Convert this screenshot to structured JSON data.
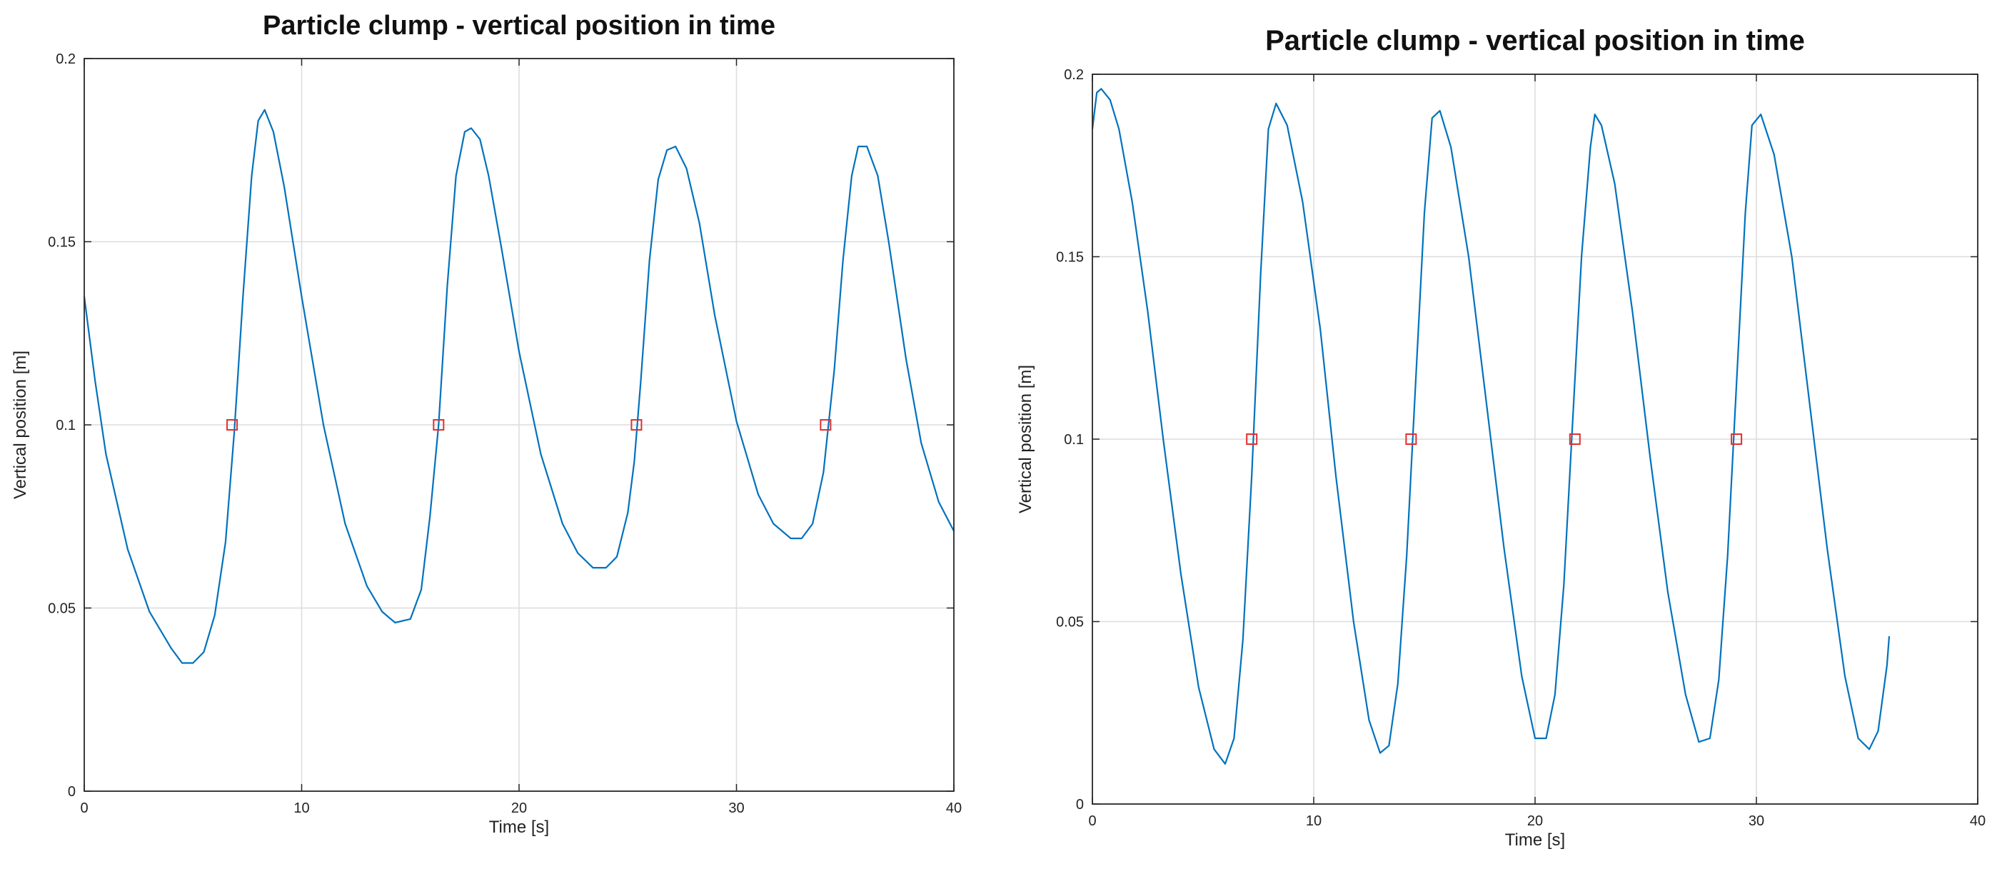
{
  "chart_data": [
    {
      "type": "line",
      "title": "Particle clump - vertical position in time",
      "xlabel": "Time [s]",
      "ylabel": "Vertical position [m]",
      "xlim": [
        0,
        40
      ],
      "ylim": [
        0,
        0.2
      ],
      "xticks": [
        "0",
        "10",
        "20",
        "30",
        "40"
      ],
      "yticks": [
        "0",
        "0.05",
        "0.1",
        "0.15",
        "0.2"
      ],
      "grid": true,
      "series": [
        {
          "color": "#0072BD",
          "x": [
            0,
            0.5,
            1,
            2,
            3,
            4,
            4.5,
            5,
            5.5,
            6,
            6.5,
            6.9,
            7.3,
            7.7,
            8.0,
            8.3,
            8.7,
            9.2,
            10,
            11,
            12,
            13,
            13.7,
            14.3,
            15,
            15.5,
            15.9,
            16.3,
            16.7,
            17.1,
            17.5,
            17.8,
            18.2,
            18.6,
            19.2,
            20,
            21,
            22,
            22.7,
            23.4,
            24,
            24.5,
            25,
            25.3,
            25.6,
            26,
            26.4,
            26.8,
            27.2,
            27.7,
            28.3,
            29,
            30,
            31,
            31.7,
            32.5,
            33,
            33.5,
            34,
            34.5,
            34.9,
            35.3,
            35.6,
            36,
            36.5,
            37,
            37.8,
            38.5,
            39.3,
            40
          ],
          "y": [
            0.135,
            0.112,
            0.092,
            0.066,
            0.049,
            0.039,
            0.035,
            0.035,
            0.038,
            0.048,
            0.068,
            0.098,
            0.135,
            0.168,
            0.183,
            0.186,
            0.18,
            0.165,
            0.135,
            0.1,
            0.073,
            0.056,
            0.049,
            0.046,
            0.047,
            0.055,
            0.075,
            0.1,
            0.138,
            0.168,
            0.18,
            0.181,
            0.178,
            0.168,
            0.148,
            0.12,
            0.092,
            0.073,
            0.065,
            0.061,
            0.061,
            0.064,
            0.076,
            0.09,
            0.112,
            0.145,
            0.167,
            0.175,
            0.176,
            0.17,
            0.155,
            0.13,
            0.101,
            0.081,
            0.073,
            0.069,
            0.069,
            0.073,
            0.087,
            0.115,
            0.145,
            0.168,
            0.176,
            0.176,
            0.168,
            0.15,
            0.118,
            0.095,
            0.079,
            0.071
          ]
        }
      ],
      "markers": {
        "color": "#e03030",
        "x": [
          6.8,
          16.3,
          25.4,
          34.1
        ],
        "y": [
          0.1,
          0.1,
          0.1,
          0.1
        ]
      }
    },
    {
      "type": "line",
      "title": "Particle clump - vertical position in time",
      "xlabel": "Time [s]",
      "ylabel": "Vertical position [m]",
      "xlim": [
        0,
        40
      ],
      "ylim": [
        0,
        0.2
      ],
      "xticks": [
        "0",
        "10",
        "20",
        "30",
        "40"
      ],
      "yticks": [
        "0",
        "0.05",
        "0.1",
        "0.15",
        "0.2"
      ],
      "grid": true,
      "series": [
        {
          "color": "#0072BD",
          "x": [
            0,
            0.2,
            0.4,
            0.8,
            1.2,
            1.8,
            2.5,
            3.2,
            4,
            4.8,
            5.5,
            6.0,
            6.4,
            6.8,
            7.2,
            7.6,
            7.95,
            8.3,
            8.8,
            9.5,
            10.3,
            11.0,
            11.8,
            12.5,
            13.0,
            13.4,
            13.8,
            14.2,
            14.6,
            15.0,
            15.35,
            15.7,
            16.2,
            17.0,
            17.8,
            18.6,
            19.4,
            20.0,
            20.5,
            20.9,
            21.3,
            21.7,
            22.1,
            22.5,
            22.7,
            23.0,
            23.6,
            24.4,
            25.2,
            26.0,
            26.8,
            27.4,
            27.9,
            28.3,
            28.7,
            29.1,
            29.5,
            29.8,
            30.2,
            30.8,
            31.6,
            32.4,
            33.2,
            34.0,
            34.6,
            35.1,
            35.5,
            35.9,
            36.0
          ],
          "y": [
            0.185,
            0.195,
            0.196,
            0.193,
            0.185,
            0.165,
            0.135,
            0.1,
            0.063,
            0.032,
            0.015,
            0.011,
            0.018,
            0.045,
            0.09,
            0.145,
            0.185,
            0.192,
            0.186,
            0.165,
            0.13,
            0.09,
            0.05,
            0.023,
            0.014,
            0.016,
            0.033,
            0.068,
            0.115,
            0.162,
            0.188,
            0.19,
            0.18,
            0.15,
            0.11,
            0.07,
            0.035,
            0.018,
            0.018,
            0.03,
            0.06,
            0.105,
            0.15,
            0.18,
            0.189,
            0.186,
            0.17,
            0.135,
            0.095,
            0.058,
            0.03,
            0.017,
            0.018,
            0.034,
            0.068,
            0.115,
            0.162,
            0.186,
            0.189,
            0.178,
            0.15,
            0.11,
            0.07,
            0.035,
            0.018,
            0.015,
            0.02,
            0.038,
            0.046
          ]
        }
      ],
      "markers": {
        "color": "#e03030",
        "x": [
          7.2,
          14.4,
          21.8,
          29.1
        ],
        "y": [
          0.1,
          0.1,
          0.1,
          0.1
        ]
      }
    }
  ]
}
